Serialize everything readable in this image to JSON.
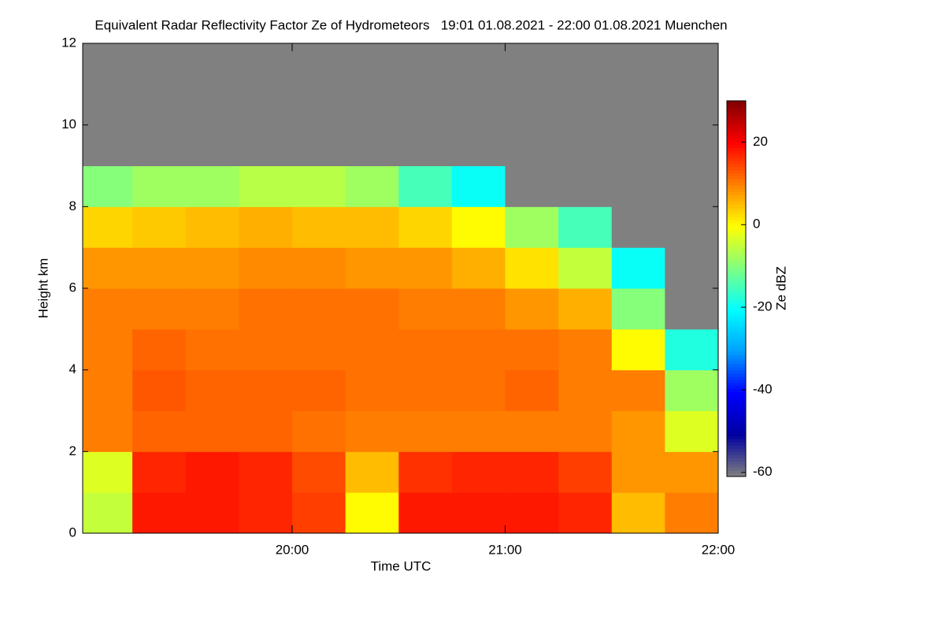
{
  "chart_data": {
    "type": "heatmap",
    "title": "Equivalent Radar Reflectivity Factor Ze of Hydrometeors   19:01 01.08.2021 - 22:00 01.08.2021 Muenchen",
    "x_label": "Time UTC",
    "y_label": "Height km",
    "colorbar_label": "Ze dBZ",
    "xlim": [
      19.0167,
      22.0
    ],
    "xticks": [
      {
        "value": 20,
        "label": "20:00"
      },
      {
        "value": 21,
        "label": "21:00"
      },
      {
        "value": 22,
        "label": "22:00"
      }
    ],
    "ylim": [
      0,
      12
    ],
    "yticks": [
      0,
      2,
      4,
      6,
      8,
      10,
      12
    ],
    "zlim": [
      -61,
      30
    ],
    "zticks": [
      -60,
      -40,
      -20,
      0,
      20
    ],
    "colorscale": [
      "#808080",
      "#0000a0",
      "#0000ff",
      "#00a0ff",
      "#00ffff",
      "#80ff80",
      "#ffff00",
      "#ff8000",
      "#ff0000",
      "#800000"
    ],
    "missing_color": "#808080",
    "x": [
      19.125,
      19.375,
      19.625,
      19.875,
      20.125,
      20.375,
      20.625,
      20.875,
      21.125,
      21.375,
      21.625,
      21.875
    ],
    "y": [
      0.5,
      1.5,
      2.5,
      3.5,
      4.5,
      5.5,
      6.5,
      7.5,
      8.5,
      9.5,
      10.5,
      11.5
    ],
    "z": [
      [
        -5,
        18,
        18,
        17,
        15,
        0,
        18,
        18,
        18,
        17,
        5,
        10
      ],
      [
        -3,
        17,
        18,
        17,
        14,
        5,
        16,
        17,
        17,
        15,
        8,
        8
      ],
      [
        10,
        12,
        12,
        12,
        11,
        10,
        10,
        10,
        10,
        10,
        8,
        -3
      ],
      [
        10,
        13,
        12,
        12,
        12,
        11,
        11,
        11,
        12,
        10,
        10,
        -8
      ],
      [
        10,
        12,
        11,
        11,
        11,
        11,
        11,
        11,
        11,
        10,
        0,
        -18
      ],
      [
        10,
        10,
        10,
        11,
        11,
        11,
        10,
        10,
        8,
        6,
        -10,
        null
      ],
      [
        8,
        8,
        8,
        9,
        9,
        8,
        8,
        6,
        2,
        -5,
        -20,
        null
      ],
      [
        3,
        4,
        5,
        6,
        5,
        5,
        3,
        0,
        -8,
        -15,
        null,
        null
      ],
      [
        -10,
        -8,
        -8,
        -6,
        -6,
        -8,
        -15,
        -20,
        null,
        null,
        null,
        null
      ],
      [
        null,
        null,
        null,
        null,
        null,
        null,
        null,
        null,
        null,
        null,
        null,
        null
      ],
      [
        null,
        null,
        null,
        null,
        null,
        null,
        null,
        null,
        null,
        null,
        null,
        null
      ],
      [
        null,
        null,
        null,
        null,
        null,
        null,
        null,
        null,
        null,
        null,
        null,
        null
      ]
    ]
  }
}
